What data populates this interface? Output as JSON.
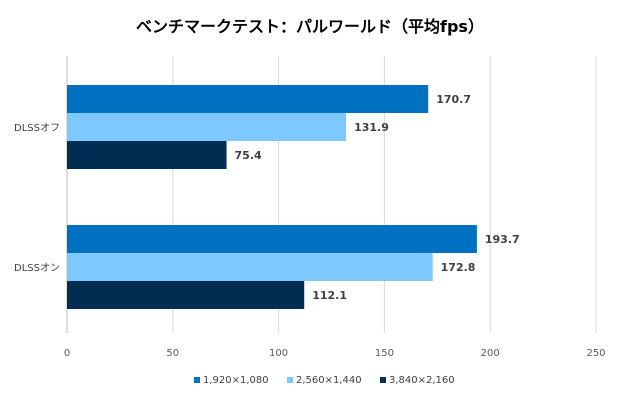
{
  "chart_data": {
    "type": "bar",
    "orientation": "horizontal",
    "title": "ベンチマークテスト：パルワールド（平均fps）",
    "categories": [
      "DLSSオフ",
      "DLSSオン"
    ],
    "series": [
      {
        "name": "1,920×1,080",
        "color": "#0070C0",
        "values": [
          170.7,
          193.7
        ]
      },
      {
        "name": "2,560×1,440",
        "color": "#7DC8FF",
        "values": [
          131.9,
          172.8
        ]
      },
      {
        "name": "3,840×2,160",
        "color": "#002D52",
        "values": [
          75.4,
          112.1
        ]
      }
    ],
    "xlim": [
      0,
      250
    ],
    "xticks": [
      0,
      50,
      100,
      150,
      200,
      250
    ],
    "grid": true,
    "legend": "bottom",
    "data_labels": true
  }
}
